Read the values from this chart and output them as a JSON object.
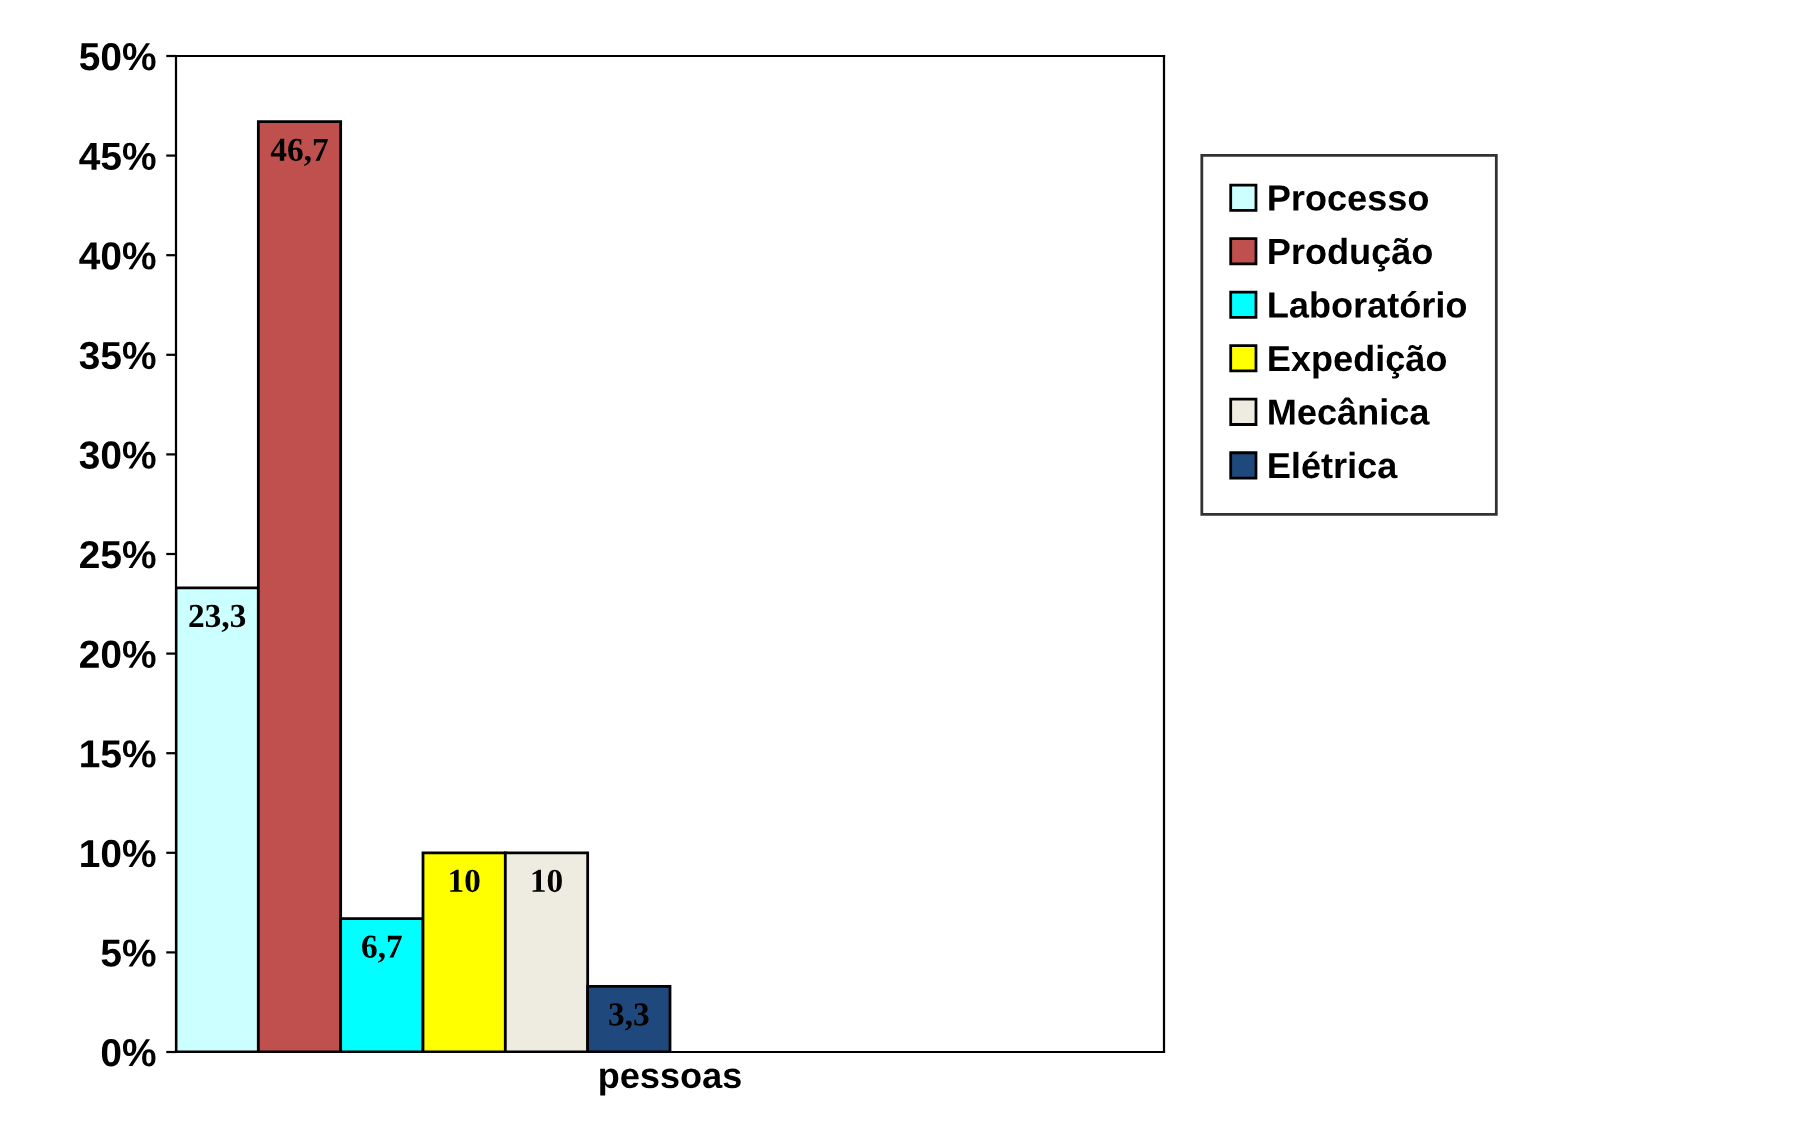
{
  "chart_data": {
    "type": "bar",
    "categories": [
      "pessoas"
    ],
    "ylim": [
      0,
      50
    ],
    "yticks": [
      {
        "value": 0,
        "label": "0%"
      },
      {
        "value": 5,
        "label": "5%"
      },
      {
        "value": 10,
        "label": "10%"
      },
      {
        "value": 15,
        "label": "15%"
      },
      {
        "value": 20,
        "label": "20%"
      },
      {
        "value": 25,
        "label": "25%"
      },
      {
        "value": 30,
        "label": "30%"
      },
      {
        "value": 35,
        "label": "35%"
      },
      {
        "value": 40,
        "label": "40%"
      },
      {
        "value": 45,
        "label": "45%"
      },
      {
        "value": 50,
        "label": "50%"
      }
    ],
    "series": [
      {
        "name": "Processo",
        "color": "#ccffff",
        "values": [
          23.3
        ],
        "value_labels": [
          "23,3"
        ]
      },
      {
        "name": "Produção",
        "color": "#c0504d",
        "values": [
          46.7
        ],
        "value_labels": [
          "46,7"
        ]
      },
      {
        "name": "Laboratório",
        "color": "#00ffff",
        "values": [
          6.7
        ],
        "value_labels": [
          "6,7"
        ]
      },
      {
        "name": "Expedição",
        "color": "#ffff00",
        "values": [
          10
        ],
        "value_labels": [
          "10"
        ]
      },
      {
        "name": "Mecânica",
        "color": "#eeece1",
        "values": [
          10
        ],
        "value_labels": [
          "10"
        ]
      },
      {
        "name": "Elétrica",
        "color": "#1f497d",
        "values": [
          3.3
        ],
        "value_labels": [
          "3,3"
        ]
      }
    ],
    "legend": "right",
    "grid": false
  }
}
